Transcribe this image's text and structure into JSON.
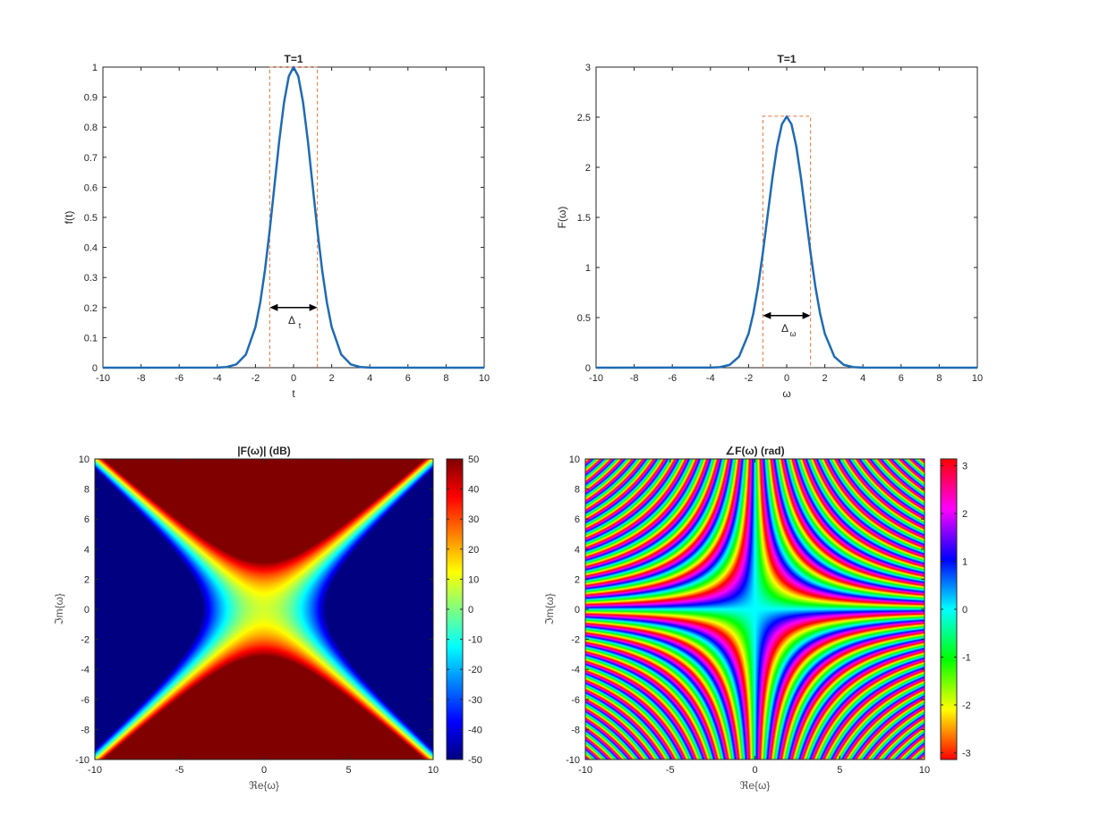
{
  "chart_data": [
    {
      "type": "line",
      "title": "T=1",
      "xlabel": "t",
      "ylabel": "f(t)",
      "xlim": [
        -10,
        10
      ],
      "ylim": [
        0,
        1
      ],
      "xticks": [
        -10,
        -8,
        -6,
        -4,
        -2,
        0,
        2,
        4,
        6,
        8,
        10
      ],
      "yticks": [
        0,
        0.1,
        0.2,
        0.3,
        0.4,
        0.5,
        0.6,
        0.7,
        0.8,
        0.9,
        1
      ],
      "xtick_labels": [
        "-10",
        "-8",
        "-6",
        "-4",
        "-2",
        "0",
        "2",
        "4",
        "6",
        "8",
        "10"
      ],
      "ytick_labels": [
        "0",
        "0.1",
        "0.2",
        "0.3",
        "0.4",
        "0.5",
        "0.6",
        "0.7",
        "0.8",
        "0.9",
        "1"
      ],
      "series": [
        {
          "x": [
            -10,
            -4,
            -3.5,
            -3,
            -2.5,
            -2,
            -1.75,
            -1.5,
            -1.25,
            -1,
            -0.75,
            -0.5,
            -0.25,
            0,
            0.25,
            0.5,
            0.75,
            1,
            1.25,
            1.5,
            1.75,
            2,
            2.5,
            3,
            3.5,
            4,
            10
          ],
          "y": [
            0,
            0.0003,
            0.0022,
            0.0111,
            0.0439,
            0.1353,
            0.2163,
            0.3247,
            0.4578,
            0.6065,
            0.7548,
            0.8825,
            0.9692,
            1,
            0.9692,
            0.8825,
            0.7548,
            0.6065,
            0.4578,
            0.3247,
            0.2163,
            0.1353,
            0.0439,
            0.0111,
            0.0022,
            0.0003,
            0
          ]
        }
      ],
      "width_box": {
        "x_from": -1.25,
        "x_to": 1.25,
        "y_top": 1
      },
      "width_arrow": {
        "x_from": -1.25,
        "x_to": 1.25,
        "y": 0.2,
        "label": "Δ",
        "label_sub": "t"
      },
      "color": "#1f6bb5",
      "box_color": "#e8743b"
    },
    {
      "type": "line",
      "title": "T=1",
      "xlabel": "ω",
      "ylabel": "F(ω)",
      "xlim": [
        -10,
        10
      ],
      "ylim": [
        0,
        3
      ],
      "xticks": [
        -10,
        -8,
        -6,
        -4,
        -2,
        0,
        2,
        4,
        6,
        8,
        10
      ],
      "yticks": [
        0,
        0.5,
        1,
        1.5,
        2,
        2.5,
        3
      ],
      "xtick_labels": [
        "-10",
        "-8",
        "-6",
        "-4",
        "-2",
        "0",
        "2",
        "4",
        "6",
        "8",
        "10"
      ],
      "ytick_labels": [
        "0",
        "0.5",
        "1",
        "1.5",
        "2",
        "2.5",
        "3"
      ],
      "series": [
        {
          "x": [
            -10,
            -4,
            -3.5,
            -3,
            -2.5,
            -2,
            -1.75,
            -1.5,
            -1.25,
            -1,
            -0.75,
            -0.5,
            -0.25,
            0,
            0.25,
            0.5,
            0.75,
            1,
            1.25,
            1.5,
            1.75,
            2,
            2.5,
            3,
            3.5,
            4,
            10
          ],
          "y": [
            0,
            0.0008,
            0.0055,
            0.0278,
            0.1101,
            0.3392,
            0.5423,
            0.8138,
            1.1476,
            1.5203,
            1.8921,
            2.2122,
            2.4296,
            2.5066,
            2.4296,
            2.2122,
            1.8921,
            1.5203,
            1.1476,
            0.8138,
            0.5423,
            0.3392,
            0.1101,
            0.0278,
            0.0055,
            0.0008,
            0
          ]
        }
      ],
      "width_box": {
        "x_from": -1.25,
        "x_to": 1.25,
        "y_top": 2.51
      },
      "width_arrow": {
        "x_from": -1.25,
        "x_to": 1.25,
        "y": 0.52,
        "label": "Δ",
        "label_sub": "ω"
      },
      "color": "#1f6bb5",
      "box_color": "#e8743b"
    },
    {
      "type": "heatmap",
      "title": "|F(ω)| (dB)",
      "xlabel": "ℜe{ω}",
      "ylabel": "ℑm{ω}",
      "xlim": [
        -10,
        10
      ],
      "ylim": [
        -10,
        10
      ],
      "xticks": [
        -10,
        -5,
        0,
        5,
        10
      ],
      "xtick_labels": [
        "-10",
        "-5",
        "0",
        "5",
        "10"
      ],
      "yticks": [
        -10,
        -8,
        -6,
        -4,
        -2,
        0,
        2,
        4,
        6,
        8,
        10
      ],
      "ytick_labels": [
        "-10",
        "-8",
        "-6",
        "-4",
        "-2",
        "0",
        "2",
        "4",
        "6",
        "8",
        "10"
      ],
      "function": "20*log10(|sqrt(2π)·exp(-ω²/2)|), ω = Re + i·Im",
      "colormap": "jet",
      "clim": [
        -50,
        50
      ],
      "colorbar_ticks": [
        -50,
        -40,
        -30,
        -20,
        -10,
        0,
        10,
        20,
        30,
        40,
        50
      ],
      "colorbar_tick_labels": [
        "-50",
        "-40",
        "-30",
        "-20",
        "-10",
        "0",
        "10",
        "20",
        "30",
        "40",
        "50"
      ]
    },
    {
      "type": "heatmap",
      "title": "∠F(ω) (rad)",
      "xlabel": "ℜe{ω}",
      "ylabel": "ℑm{ω}",
      "xlim": [
        -10,
        10
      ],
      "ylim": [
        -10,
        10
      ],
      "xticks": [
        -10,
        -5,
        0,
        5,
        10
      ],
      "xtick_labels": [
        "-10",
        "-5",
        "0",
        "5",
        "10"
      ],
      "yticks": [
        -10,
        -8,
        -6,
        -4,
        -2,
        0,
        2,
        4,
        6,
        8,
        10
      ],
      "ytick_labels": [
        "-10",
        "-8",
        "-6",
        "-4",
        "-2",
        "0",
        "2",
        "4",
        "6",
        "8",
        "10"
      ],
      "function": "arg(exp(-ω²/2)) = -Re·Im, wrapped to [-π, π]",
      "colormap": "hsv",
      "clim": [
        -3.1416,
        3.1416
      ],
      "colorbar_ticks": [
        -3,
        -2,
        -1,
        0,
        1,
        2,
        3
      ],
      "colorbar_tick_labels": [
        "-3",
        "-2",
        "-1",
        "0",
        "1",
        "2",
        "3"
      ]
    }
  ]
}
